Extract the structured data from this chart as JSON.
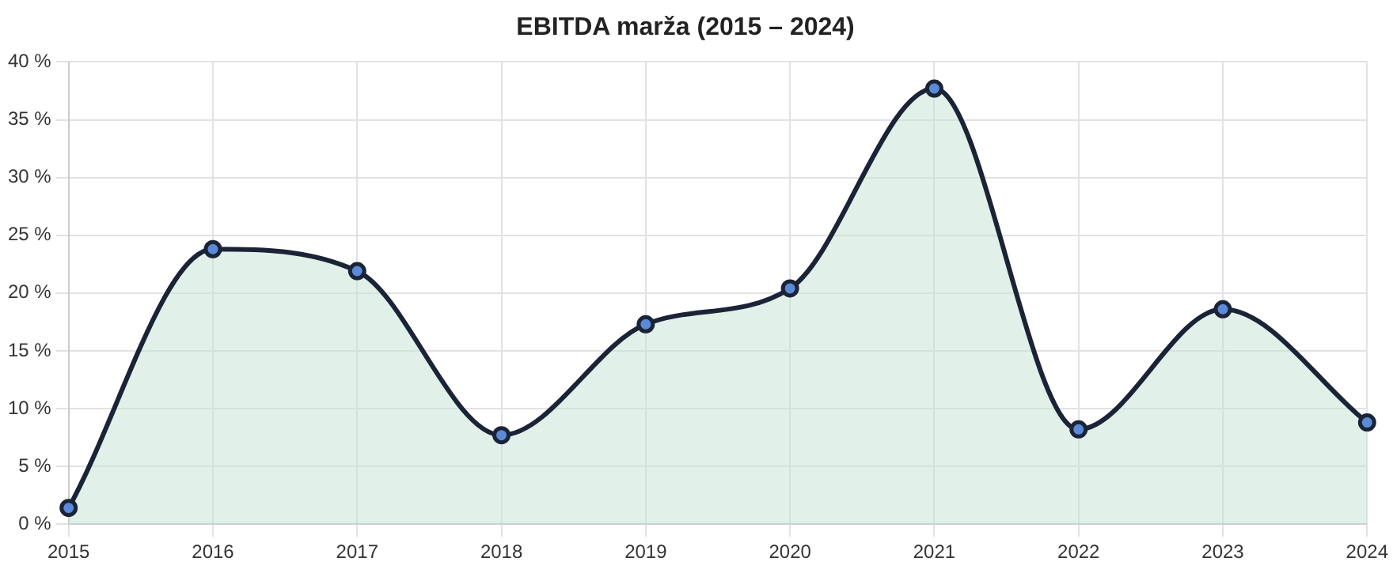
{
  "chart_data": {
    "type": "area",
    "title": "EBITDA marža (2015 – 2024)",
    "categories": [
      "2015",
      "2016",
      "2017",
      "2018",
      "2019",
      "2020",
      "2021",
      "2022",
      "2023",
      "2024"
    ],
    "series": [
      {
        "color": "#1b2436",
        "values": [
          1.4,
          23.8,
          21.9,
          7.7,
          17.3,
          20.4,
          37.7,
          8.2,
          18.6,
          8.8
        ]
      }
    ],
    "ylim": [
      0,
      40
    ],
    "yticks": [
      {
        "value": 0,
        "label": "0 %"
      },
      {
        "value": 5,
        "label": "5 %"
      },
      {
        "value": 10,
        "label": "10 %"
      },
      {
        "value": 15,
        "label": "15 %"
      },
      {
        "value": 20,
        "label": "20 %"
      },
      {
        "value": 25,
        "label": "25 %"
      },
      {
        "value": 30,
        "label": "30 %"
      },
      {
        "value": 35,
        "label": "35 %"
      },
      {
        "value": 40,
        "label": "40 %"
      }
    ],
    "grid": true,
    "legend": false,
    "marker": "circle",
    "line_style": "solid"
  }
}
